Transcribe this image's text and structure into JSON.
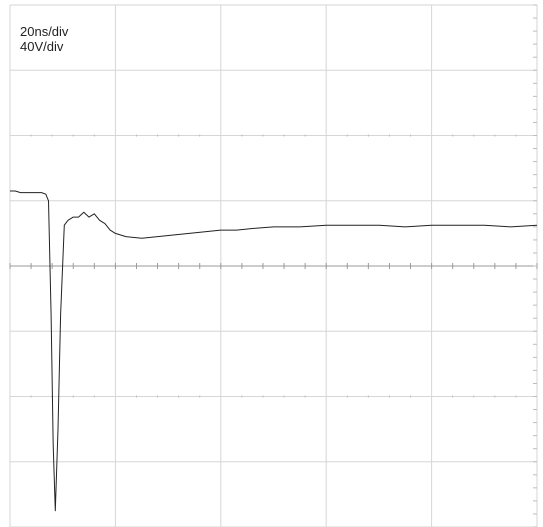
{
  "scale": {
    "time": "20ns/div",
    "volt": "40V/div"
  },
  "chart_data": {
    "type": "line",
    "title": "",
    "xlabel": "",
    "ylabel": "",
    "grid": true,
    "x_unit": "ns",
    "y_unit": "V",
    "xlim": [
      0,
      100
    ],
    "ylim": [
      -160,
      160
    ],
    "series": [
      {
        "x": [
          0,
          1.0,
          2.0,
          3.0,
          4.0,
          5.0,
          6.0,
          6.8,
          7.3,
          7.8,
          8.2,
          8.6,
          9.1,
          9.6,
          10.3,
          11.0,
          12.0,
          13.0,
          14.0,
          15.0,
          16.0,
          17.0,
          18.0,
          19.0,
          20.0,
          22.0,
          25.0,
          28.0,
          31.0,
          34.0,
          37.0,
          40.0,
          43.0,
          46.0,
          50.0,
          55.0,
          60.0,
          65.0,
          70.0,
          75.0,
          80.0,
          85.0,
          90.0,
          95.0,
          100.0
        ],
        "y": [
          46,
          46,
          45,
          45,
          45,
          45,
          45,
          44,
          40,
          -30,
          -110,
          -150,
          -100,
          -30,
          25,
          28,
          30,
          30,
          33,
          30,
          32,
          28,
          26,
          22,
          20,
          18,
          17,
          18,
          19,
          20,
          21,
          22,
          22,
          23,
          24,
          24,
          25,
          25,
          25,
          24,
          25,
          25,
          25,
          24,
          25
        ]
      }
    ]
  }
}
